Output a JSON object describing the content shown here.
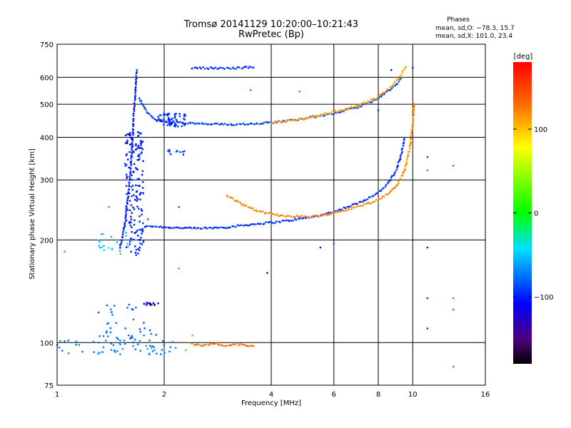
{
  "chart_data": {
    "type": "scatter",
    "title": "Tromsø 20141129 10:20:00–10:21:43",
    "subtitle": "RwPretec (Bp)",
    "xlabel": "Frequency [MHz]",
    "ylabel": "Stationary phase Virtual Height [km]",
    "x_scale": "log",
    "y_scale": "log",
    "xlim": [
      1,
      16
    ],
    "ylim": [
      75,
      750
    ],
    "x_ticks": [
      1,
      2,
      4,
      6,
      8,
      10,
      16
    ],
    "y_ticks": [
      75,
      100,
      200,
      300,
      400,
      500,
      600,
      750
    ],
    "grid": true,
    "phase_info": {
      "heading": "Phases",
      "line1": "mean, sd,O: −78.3, 15.7",
      "line2": "mean, sd,X: 101.0, 23.4"
    },
    "colorbar": {
      "label": "[deg]",
      "range": [
        -180,
        180
      ],
      "ticks": [
        100,
        0,
        -100
      ]
    },
    "series": [
      {
        "kind": "curve",
        "phase": -95,
        "points": [
          [
            1.65,
            210
          ],
          [
            1.8,
            220
          ],
          [
            2,
            218
          ],
          [
            2.5,
            216
          ],
          [
            3,
            218
          ],
          [
            3.5,
            222
          ],
          [
            4,
            225
          ],
          [
            4.5,
            228
          ],
          [
            5,
            232
          ],
          [
            5.5,
            236
          ],
          [
            6,
            242
          ],
          [
            7,
            256
          ],
          [
            8,
            275
          ],
          [
            8.5,
            292
          ],
          [
            9,
            320
          ],
          [
            9.3,
            360
          ],
          [
            9.5,
            400
          ]
        ]
      },
      {
        "kind": "curve",
        "phase": 120,
        "points": [
          [
            3,
            270
          ],
          [
            3.3,
            255
          ],
          [
            3.7,
            242
          ],
          [
            4.2,
            236
          ],
          [
            5,
            234
          ],
          [
            5.5,
            236
          ],
          [
            6,
            240
          ],
          [
            6.5,
            245
          ],
          [
            7,
            250
          ],
          [
            7.5,
            256
          ],
          [
            8,
            263
          ],
          [
            8.5,
            272
          ],
          [
            9,
            288
          ],
          [
            9.5,
            320
          ],
          [
            9.8,
            370
          ],
          [
            10,
            440
          ],
          [
            10.1,
            510
          ]
        ]
      },
      {
        "kind": "curve",
        "phase": -90,
        "points": [
          [
            1.7,
            520
          ],
          [
            1.8,
            470
          ],
          [
            1.9,
            450
          ],
          [
            2,
            445
          ],
          [
            2.3,
            440
          ],
          [
            2.7,
            437
          ],
          [
            3,
            436
          ],
          [
            3.5,
            438
          ],
          [
            4,
            442
          ],
          [
            4.5,
            448
          ],
          [
            5,
            455
          ],
          [
            6,
            470
          ],
          [
            7,
            490
          ],
          [
            7.5,
            505
          ],
          [
            8,
            520
          ],
          [
            8.5,
            545
          ],
          [
            9,
            570
          ],
          [
            9.3,
            600
          ]
        ]
      },
      {
        "kind": "curve",
        "phase": 110,
        "points": [
          [
            4,
            440
          ],
          [
            5,
            455
          ],
          [
            6,
            475
          ],
          [
            7,
            495
          ],
          [
            8,
            525
          ],
          [
            8.6,
            560
          ],
          [
            9.2,
            600
          ],
          [
            9.6,
            650
          ]
        ]
      },
      {
        "kind": "curve",
        "phase": -100,
        "points": [
          [
            1.5,
            190
          ],
          [
            1.55,
            220
          ],
          [
            1.6,
            300
          ],
          [
            1.63,
            400
          ],
          [
            1.65,
            500
          ],
          [
            1.67,
            600
          ],
          [
            1.68,
            640
          ]
        ]
      },
      {
        "kind": "curve",
        "phase": 130,
        "points": [
          [
            2.4,
            99
          ],
          [
            2.6,
            98
          ],
          [
            2.8,
            99
          ],
          [
            3,
            98
          ],
          [
            3.2,
            99
          ],
          [
            3.4,
            98
          ],
          [
            3.6,
            97
          ]
        ]
      },
      {
        "kind": "curve",
        "phase": -95,
        "points": [
          [
            2.4,
            640
          ],
          [
            2.7,
            638
          ],
          [
            3,
            637
          ],
          [
            3.3,
            640
          ],
          [
            3.6,
            642
          ]
        ]
      },
      {
        "kind": "cluster",
        "phase": -100,
        "x": [
          1.55,
          1.75
        ],
        "y": [
          180,
          420
        ],
        "n": 160
      },
      {
        "kind": "cluster",
        "phase": -95,
        "x": [
          1.9,
          2.3
        ],
        "y": [
          430,
          470
        ],
        "n": 60
      },
      {
        "kind": "cluster",
        "phase": -70,
        "x": [
          1,
          2.2
        ],
        "y": [
          92,
          102
        ],
        "n": 60
      },
      {
        "kind": "cluster",
        "phase": -80,
        "x": [
          1.3,
          1.9
        ],
        "y": [
          100,
          130
        ],
        "n": 40
      },
      {
        "kind": "cluster",
        "phase": -130,
        "x": [
          1.75,
          1.95
        ],
        "y": [
          128,
          131
        ],
        "n": 15
      },
      {
        "kind": "cluster",
        "phase": -50,
        "x": [
          1.3,
          1.6
        ],
        "y": [
          180,
          210
        ],
        "n": 20
      },
      {
        "kind": "cluster",
        "phase": -95,
        "x": [
          2.05,
          2.3
        ],
        "y": [
          355,
          370
        ],
        "n": 10
      },
      {
        "kind": "scatter",
        "phase": 140,
        "points": [
          [
            4.8,
            545
          ],
          [
            3.5,
            550
          ],
          [
            11,
            320
          ],
          [
            13,
            330
          ],
          [
            13,
            85
          ],
          [
            13,
            125
          ]
        ]
      },
      {
        "kind": "scatter",
        "phase": -100,
        "points": [
          [
            11,
            350
          ],
          [
            11,
            190
          ],
          [
            11,
            135
          ],
          [
            11,
            110
          ],
          [
            5.5,
            190
          ],
          [
            3.9,
            160
          ],
          [
            8,
            480
          ],
          [
            10,
            640
          ],
          [
            8.7,
            630
          ]
        ]
      },
      {
        "kind": "scatter",
        "phase": -60,
        "points": [
          [
            1.05,
            185
          ],
          [
            2.2,
            165
          ],
          [
            6,
            195
          ],
          [
            13,
            135
          ],
          [
            1.4,
            250
          ]
        ]
      },
      {
        "kind": "scatter",
        "phase": 160,
        "points": [
          [
            2.2,
            250
          ],
          [
            2.2,
            250
          ],
          [
            1.8,
            230
          ]
        ]
      },
      {
        "kind": "scatter",
        "phase": 20,
        "points": [
          [
            2.4,
            105
          ],
          [
            2.3,
            95
          ]
        ]
      }
    ]
  }
}
